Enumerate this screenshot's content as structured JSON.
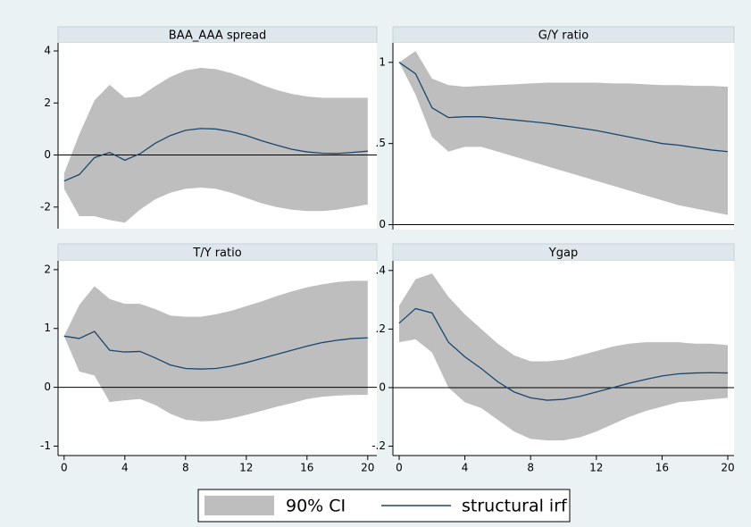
{
  "chart_data": [
    {
      "type": "line",
      "title": "BAA_AAA spread",
      "x": [
        0,
        1,
        2,
        3,
        4,
        5,
        6,
        7,
        8,
        9,
        10,
        11,
        12,
        13,
        14,
        15,
        16,
        17,
        18,
        19,
        20
      ],
      "xlim": [
        -0.4,
        20.6
      ],
      "ylim": [
        -2.83,
        4.31
      ],
      "yticks": [
        -2,
        0,
        2,
        4
      ],
      "zero_line": true,
      "series": [
        {
          "name": "90% CI",
          "color": "#bebebe",
          "upper": [
            -0.7,
            0.8,
            2.1,
            2.7,
            2.2,
            2.25,
            2.65,
            3.0,
            3.25,
            3.35,
            3.3,
            3.15,
            2.95,
            2.7,
            2.5,
            2.35,
            2.25,
            2.2,
            2.2,
            2.2,
            2.2
          ],
          "lower": [
            -1.3,
            -2.35,
            -2.35,
            -2.5,
            -2.6,
            -2.1,
            -1.7,
            -1.45,
            -1.3,
            -1.25,
            -1.3,
            -1.45,
            -1.65,
            -1.85,
            -2.0,
            -2.1,
            -2.15,
            -2.15,
            -2.1,
            -2.0,
            -1.9
          ]
        },
        {
          "name": "structural irf",
          "color": "#1a476f",
          "values": [
            -1.0,
            -0.75,
            -0.1,
            0.1,
            -0.2,
            0.05,
            0.45,
            0.75,
            0.95,
            1.02,
            1.0,
            0.9,
            0.75,
            0.55,
            0.38,
            0.22,
            0.12,
            0.07,
            0.06,
            0.1,
            0.15
          ]
        }
      ]
    },
    {
      "type": "line",
      "title": "G/Y ratio",
      "x": [
        0,
        1,
        2,
        3,
        4,
        5,
        6,
        7,
        8,
        9,
        10,
        11,
        12,
        13,
        14,
        15,
        16,
        17,
        18,
        19,
        20
      ],
      "xlim": [
        -0.38,
        20.38
      ],
      "ylim": [
        -0.03,
        1.12
      ],
      "yticks": [
        0,
        {
          "value": 0.5,
          "label": ".5"
        },
        1
      ],
      "zero_line": true,
      "series": [
        {
          "name": "90% CI",
          "color": "#bebebe",
          "upper": [
            1.0,
            1.07,
            0.9,
            0.86,
            0.85,
            0.855,
            0.86,
            0.865,
            0.87,
            0.875,
            0.875,
            0.875,
            0.875,
            0.87,
            0.87,
            0.865,
            0.86,
            0.86,
            0.855,
            0.855,
            0.85
          ],
          "lower": [
            1.0,
            0.8,
            0.54,
            0.45,
            0.48,
            0.48,
            0.45,
            0.42,
            0.39,
            0.36,
            0.33,
            0.3,
            0.27,
            0.24,
            0.21,
            0.18,
            0.15,
            0.12,
            0.1,
            0.08,
            0.06
          ]
        },
        {
          "name": "structural irf",
          "color": "#1a476f",
          "values": [
            1.0,
            0.93,
            0.72,
            0.66,
            0.665,
            0.665,
            0.655,
            0.645,
            0.635,
            0.625,
            0.61,
            0.595,
            0.58,
            0.56,
            0.54,
            0.52,
            0.5,
            0.49,
            0.475,
            0.46,
            0.45
          ]
        }
      ]
    },
    {
      "type": "line",
      "title": "T/Y ratio",
      "x": [
        0,
        1,
        2,
        3,
        4,
        5,
        6,
        7,
        8,
        9,
        10,
        11,
        12,
        13,
        14,
        15,
        16,
        17,
        18,
        19,
        20
      ],
      "xlim": [
        -0.4,
        20.6
      ],
      "ylim": [
        -1.16,
        2.15
      ],
      "yticks": [
        -1,
        0,
        1,
        2
      ],
      "xticks": [
        0,
        4,
        8,
        12,
        16,
        20
      ],
      "zero_line": true,
      "series": [
        {
          "name": "90% CI",
          "color": "#bebebe",
          "upper": [
            0.87,
            1.4,
            1.72,
            1.5,
            1.42,
            1.42,
            1.33,
            1.22,
            1.2,
            1.2,
            1.24,
            1.3,
            1.38,
            1.46,
            1.55,
            1.63,
            1.7,
            1.75,
            1.79,
            1.81,
            1.81
          ],
          "lower": [
            0.87,
            0.27,
            0.2,
            -0.25,
            -0.22,
            -0.2,
            -0.3,
            -0.45,
            -0.55,
            -0.58,
            -0.57,
            -0.53,
            -0.47,
            -0.4,
            -0.33,
            -0.27,
            -0.2,
            -0.16,
            -0.14,
            -0.13,
            -0.13
          ]
        },
        {
          "name": "structural irf",
          "color": "#1a476f",
          "values": [
            0.87,
            0.83,
            0.95,
            0.63,
            0.6,
            0.61,
            0.5,
            0.38,
            0.32,
            0.31,
            0.32,
            0.36,
            0.42,
            0.49,
            0.56,
            0.63,
            0.7,
            0.76,
            0.8,
            0.83,
            0.84
          ]
        }
      ]
    },
    {
      "type": "line",
      "title": "Ygap",
      "x": [
        0,
        1,
        2,
        3,
        4,
        5,
        6,
        7,
        8,
        9,
        10,
        11,
        12,
        13,
        14,
        15,
        16,
        17,
        18,
        19,
        20
      ],
      "xlim": [
        -0.38,
        20.38
      ],
      "ylim": [
        -0.232,
        0.433
      ],
      "yticks": [
        {
          "value": -0.2,
          "label": "-.2"
        },
        0,
        {
          "value": 0.2,
          "label": ".2"
        },
        {
          "value": 0.4,
          "label": ".4"
        }
      ],
      "xticks": [
        0,
        4,
        8,
        12,
        16,
        20
      ],
      "zero_line": true,
      "series": [
        {
          "name": "90% CI",
          "color": "#bebebe",
          "upper": [
            0.28,
            0.37,
            0.39,
            0.31,
            0.25,
            0.2,
            0.15,
            0.11,
            0.09,
            0.09,
            0.095,
            0.11,
            0.125,
            0.14,
            0.15,
            0.155,
            0.155,
            0.155,
            0.15,
            0.15,
            0.145
          ],
          "lower": [
            0.155,
            0.165,
            0.12,
            0.0,
            -0.05,
            -0.07,
            -0.11,
            -0.15,
            -0.175,
            -0.18,
            -0.18,
            -0.17,
            -0.15,
            -0.125,
            -0.1,
            -0.08,
            -0.065,
            -0.05,
            -0.045,
            -0.04,
            -0.035
          ]
        },
        {
          "name": "structural irf",
          "color": "#1a476f",
          "values": [
            0.22,
            0.27,
            0.255,
            0.155,
            0.105,
            0.065,
            0.02,
            -0.015,
            -0.035,
            -0.043,
            -0.04,
            -0.03,
            -0.015,
            0.0,
            0.015,
            0.028,
            0.04,
            0.047,
            0.05,
            0.051,
            0.05
          ]
        }
      ]
    }
  ]
}
